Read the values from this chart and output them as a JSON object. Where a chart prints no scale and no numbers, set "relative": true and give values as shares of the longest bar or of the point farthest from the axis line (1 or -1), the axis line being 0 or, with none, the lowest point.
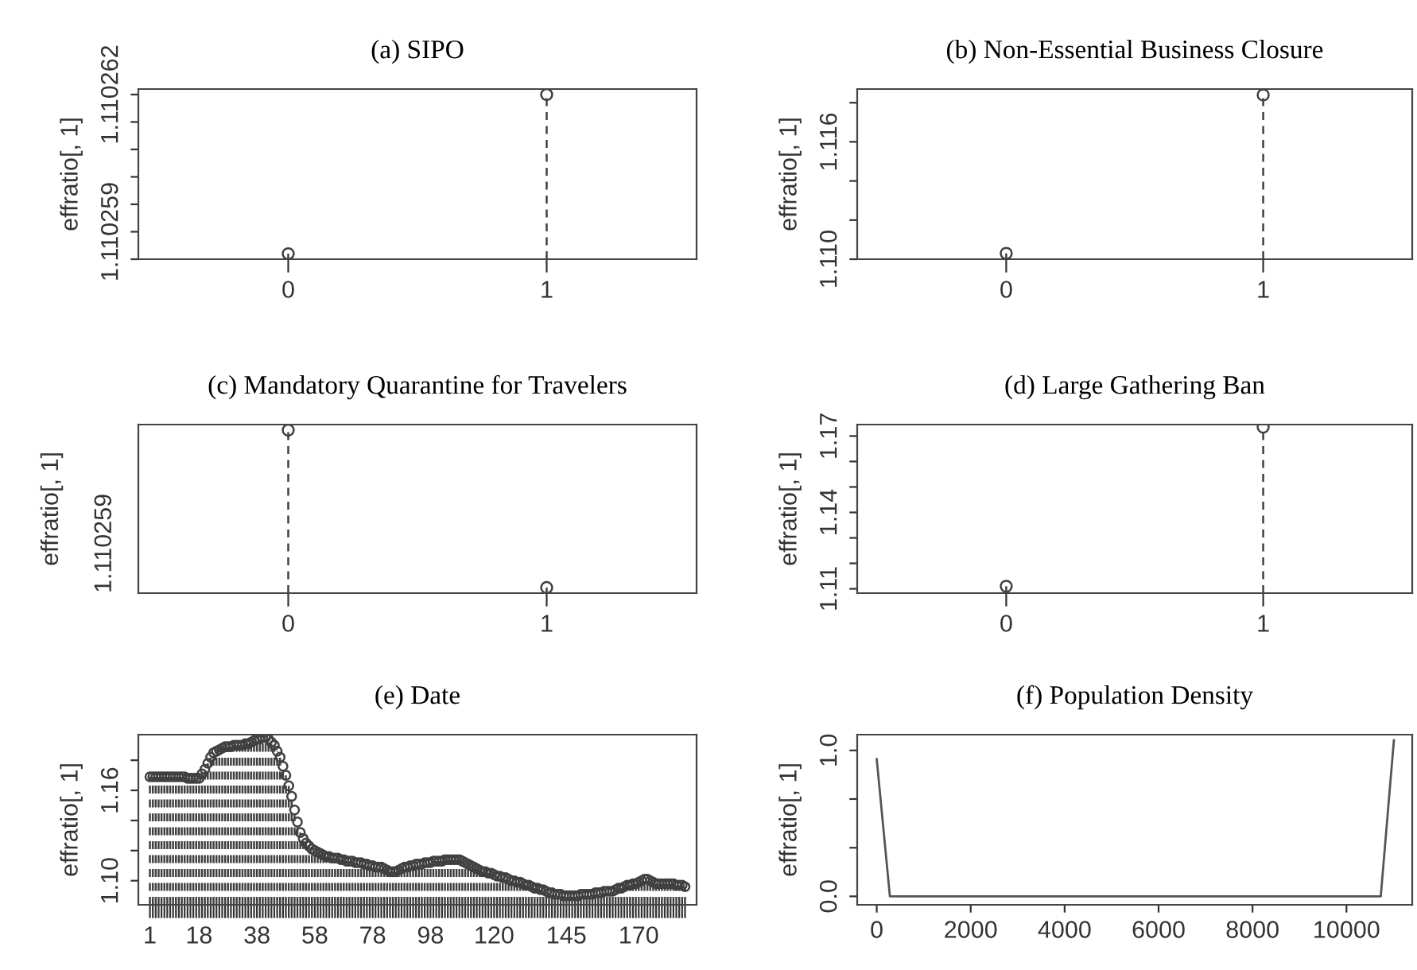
{
  "chart_data": [
    {
      "type": "lollipop",
      "title": "(a) SIPO",
      "ylabel": "effratio[, 1]",
      "categories": [
        "0",
        "1"
      ],
      "values": [
        1.1102586,
        1.1102615
      ],
      "color": "#404040",
      "marker": "circle",
      "line_style": "dashed",
      "ylim": [
        1.1102585,
        1.1102616
      ],
      "yticks": [
        {
          "value": 1.1102585,
          "label": null
        },
        {
          "value": 1.110259,
          "label": "1.110259"
        },
        {
          "value": 1.1102595,
          "label": null
        },
        {
          "value": 1.11026,
          "label": null
        },
        {
          "value": 1.1102605,
          "label": null
        },
        {
          "value": 1.110261,
          "label": null
        },
        {
          "value": 1.1102615,
          "label": "1.110262"
        }
      ]
    },
    {
      "type": "lollipop",
      "title": "(b) Non-Essential Business Closure",
      "ylabel": "effratio[, 1]",
      "categories": [
        "0",
        "1"
      ],
      "values": [
        1.1103,
        1.1184
      ],
      "color": "#404040",
      "marker": "circle",
      "line_style": "dashed",
      "ylim": [
        1.11,
        1.1187
      ],
      "yticks": [
        {
          "value": 1.11,
          "label": "1.110"
        },
        {
          "value": 1.112,
          "label": null
        },
        {
          "value": 1.114,
          "label": null
        },
        {
          "value": 1.116,
          "label": "1.116"
        },
        {
          "value": 1.118,
          "label": null
        }
      ]
    },
    {
      "type": "lollipop",
      "title": "(c) Mandatory Quarantine for Travelers",
      "ylabel": "effratio[, 1]",
      "categories": [
        "0",
        "1"
      ],
      "values": [
        1,
        0
      ],
      "relative": true,
      "annotations": [
        "1.110259"
      ],
      "color": "#404040",
      "marker": "circle",
      "line_style": "dashed"
    },
    {
      "type": "lollipop",
      "title": "(d) Large Gathering Ban",
      "ylabel": "effratio[, 1]",
      "categories": [
        "0",
        "1"
      ],
      "values": [
        1.111,
        1.1735
      ],
      "color": "#404040",
      "marker": "circle",
      "line_style": "dashed",
      "ylim": [
        1.1083,
        1.1745
      ],
      "yticks": [
        {
          "value": 1.11,
          "label": "1.11"
        },
        {
          "value": 1.12,
          "label": null
        },
        {
          "value": 1.13,
          "label": null
        },
        {
          "value": 1.14,
          "label": "1.14"
        },
        {
          "value": 1.15,
          "label": null
        },
        {
          "value": 1.16,
          "label": null
        },
        {
          "value": 1.17,
          "label": "1.17"
        }
      ]
    },
    {
      "type": "lollipop",
      "title": "(e) Date",
      "ylabel": "effratio[, 1]",
      "color": "#404040",
      "marker": "circle",
      "line_style": "dashed",
      "ylim": [
        1.084,
        1.197
      ],
      "yticks": [
        {
          "value": 1.1,
          "label": "1.10"
        },
        {
          "value": 1.12,
          "label": null
        },
        {
          "value": 1.14,
          "label": null
        },
        {
          "value": 1.16,
          "label": "1.16"
        },
        {
          "value": 1.18,
          "label": null
        }
      ],
      "categories": [
        "1",
        null,
        null,
        null,
        null,
        null,
        null,
        null,
        null,
        null,
        null,
        null,
        null,
        null,
        null,
        null,
        null,
        "18",
        null,
        null,
        null,
        null,
        null,
        null,
        null,
        null,
        null,
        null,
        null,
        null,
        null,
        null,
        null,
        null,
        null,
        null,
        null,
        "38",
        null,
        null,
        null,
        null,
        null,
        null,
        null,
        null,
        null,
        null,
        null,
        null,
        null,
        null,
        null,
        null,
        null,
        null,
        null,
        "58",
        null,
        null,
        null,
        null,
        null,
        null,
        null,
        null,
        null,
        null,
        null,
        null,
        null,
        null,
        null,
        null,
        null,
        null,
        null,
        "78",
        null,
        null,
        null,
        null,
        null,
        null,
        null,
        null,
        null,
        null,
        null,
        null,
        null,
        null,
        null,
        null,
        null,
        null,
        null,
        "98",
        null,
        null,
        null,
        null,
        null,
        null,
        null,
        null,
        null,
        null,
        null,
        null,
        null,
        null,
        null,
        null,
        null,
        null,
        null,
        null,
        null,
        "120",
        null,
        null,
        null,
        null,
        null,
        null,
        null,
        null,
        null,
        null,
        null,
        null,
        null,
        null,
        null,
        null,
        null,
        null,
        null,
        null,
        null,
        null,
        null,
        null,
        "145",
        null,
        null,
        null,
        null,
        null,
        null,
        null,
        null,
        null,
        null,
        null,
        null,
        null,
        null,
        null,
        null,
        null,
        null,
        null,
        null,
        null,
        null,
        null,
        null,
        "170",
        null,
        null,
        null,
        null,
        null,
        null,
        null,
        null,
        null,
        null,
        null,
        null,
        null,
        null,
        null,
        null
      ],
      "values": [
        1.169,
        1.169,
        1.169,
        1.169,
        1.169,
        1.169,
        1.169,
        1.169,
        1.169,
        1.169,
        1.169,
        1.169,
        1.169,
        1.168,
        1.168,
        1.168,
        1.168,
        1.168,
        1.171,
        1.174,
        1.178,
        1.182,
        1.185,
        1.186,
        1.187,
        1.188,
        1.189,
        1.189,
        1.189,
        1.19,
        1.19,
        1.19,
        1.19,
        1.191,
        1.191,
        1.192,
        1.193,
        1.194,
        1.194,
        1.195,
        1.195,
        1.194,
        1.192,
        1.19,
        1.186,
        1.182,
        1.176,
        1.17,
        1.163,
        1.156,
        1.147,
        1.139,
        1.132,
        1.128,
        1.125,
        1.123,
        1.121,
        1.12,
        1.119,
        1.118,
        1.117,
        1.116,
        1.116,
        1.115,
        1.115,
        1.115,
        1.114,
        1.114,
        1.113,
        1.113,
        1.113,
        1.112,
        1.112,
        1.112,
        1.111,
        1.111,
        1.11,
        1.11,
        1.109,
        1.109,
        1.109,
        1.108,
        1.107,
        1.106,
        1.106,
        1.106,
        1.107,
        1.108,
        1.109,
        1.109,
        1.11,
        1.11,
        1.111,
        1.111,
        1.111,
        1.112,
        1.112,
        1.112,
        1.113,
        1.113,
        1.113,
        1.113,
        1.114,
        1.114,
        1.114,
        1.114,
        1.114,
        1.114,
        1.113,
        1.112,
        1.111,
        1.11,
        1.109,
        1.108,
        1.107,
        1.106,
        1.106,
        1.105,
        1.105,
        1.104,
        1.103,
        1.103,
        1.102,
        1.102,
        1.101,
        1.1,
        1.1,
        1.099,
        1.099,
        1.098,
        1.097,
        1.097,
        1.096,
        1.095,
        1.095,
        1.094,
        1.094,
        1.093,
        1.092,
        1.092,
        1.091,
        1.091,
        1.091,
        1.09,
        1.09,
        1.09,
        1.09,
        1.09,
        1.09,
        1.091,
        1.091,
        1.091,
        1.091,
        1.091,
        1.092,
        1.092,
        1.092,
        1.093,
        1.093,
        1.093,
        1.093,
        1.094,
        1.095,
        1.095,
        1.096,
        1.097,
        1.097,
        1.098,
        1.098,
        1.099,
        1.1,
        1.101,
        1.101,
        1.1,
        1.099,
        1.098,
        1.098,
        1.098,
        1.098,
        1.098,
        1.098,
        1.098,
        1.097,
        1.097,
        1.097,
        1.096
      ]
    },
    {
      "type": "line",
      "title": "(f) Population Density",
      "ylabel": "effratio[, 1]",
      "color": "#555555",
      "line_style": "solid",
      "x": [
        0,
        280,
        10730,
        11010
      ],
      "values": [
        0.94,
        0,
        0,
        1.07
      ],
      "xlim": [
        -416,
        11400
      ],
      "xticks": [
        0,
        2000,
        4000,
        6000,
        8000,
        10000
      ],
      "ylim": [
        -0.058,
        1.108
      ],
      "yticks": [
        {
          "value": 0,
          "label": "0.0"
        },
        {
          "value": 0.333,
          "label": null
        },
        {
          "value": 0.667,
          "label": null
        },
        {
          "value": 1,
          "label": "1.0"
        }
      ]
    }
  ]
}
